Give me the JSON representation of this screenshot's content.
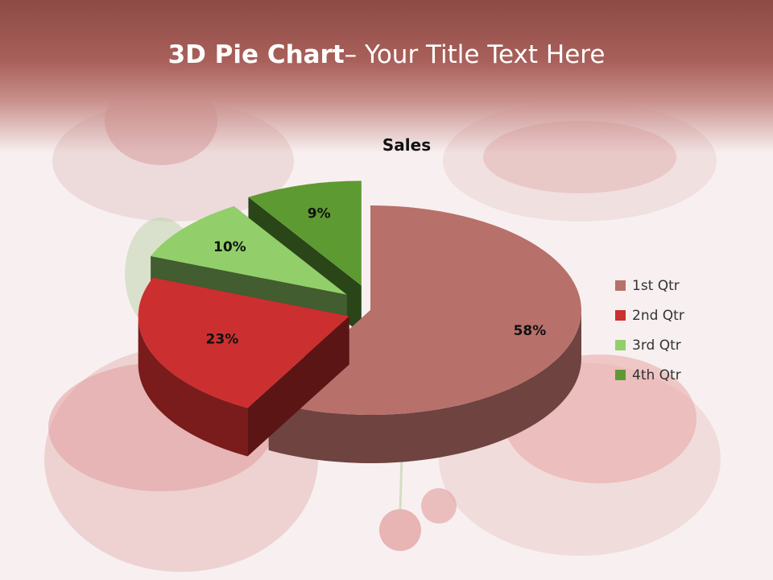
{
  "slide": {
    "title_bold": "3D Pie Chart",
    "title_rest": "– Your Title Text Here"
  },
  "chart_data": {
    "type": "pie",
    "title": "Sales",
    "categories": [
      "1st Qtr",
      "2nd Qtr",
      "3rd Qtr",
      "4th Qtr"
    ],
    "values": [
      58,
      23,
      10,
      9
    ],
    "labels": [
      "58%",
      "23%",
      "10%",
      "9%"
    ],
    "colors": [
      "#b8706a",
      "#cc2f2f",
      "#92cf6a",
      "#5e9a32"
    ],
    "exploded": true,
    "style": "3d",
    "legend_position": "right"
  }
}
